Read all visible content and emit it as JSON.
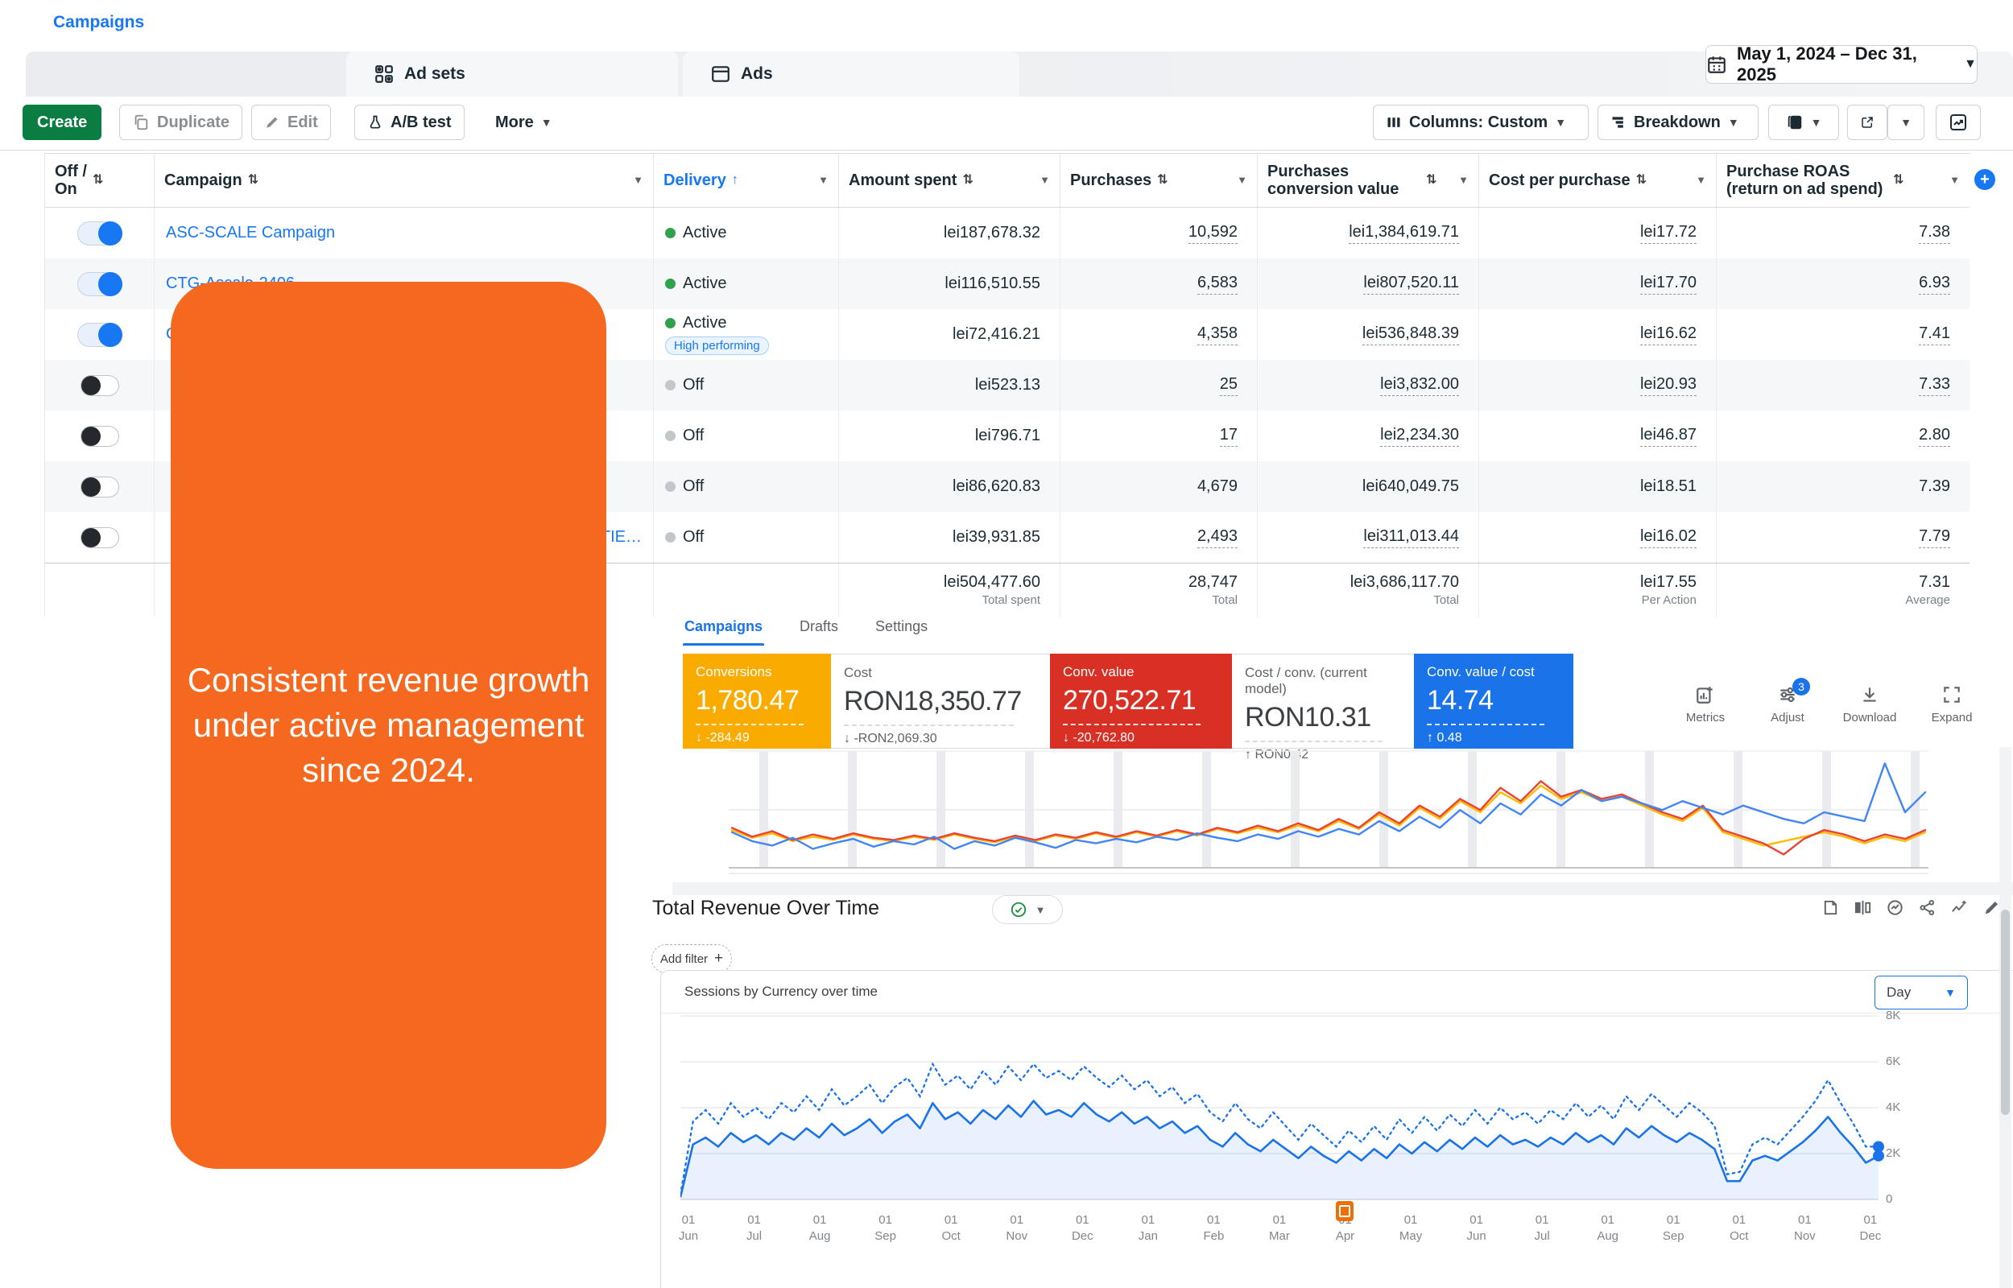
{
  "colors": {
    "meta_blue": "#1877F2",
    "google_blue": "#1A73E8",
    "green": "#31A24C",
    "amber": "#F9AB00",
    "red": "#D93025",
    "create_green": "#0B7C42",
    "overlay_orange": "#F4691F"
  },
  "tabs": {
    "campaigns": "Campaigns",
    "ad_sets": "Ad sets",
    "ads": "Ads"
  },
  "date_range": "May 1, 2024 – Dec 31, 2025",
  "toolbar": {
    "create": "Create",
    "duplicate": "Duplicate",
    "edit": "Edit",
    "ab_test": "A/B test",
    "more": "More",
    "columns": "Columns: Custom",
    "breakdown": "Breakdown"
  },
  "table": {
    "headers": {
      "off_on": "Off /\nOn",
      "campaign": "Campaign",
      "delivery": "Delivery",
      "amount_spent": "Amount spent",
      "purchases": "Purchases",
      "purchases_conversion_value": "Purchases conversion value",
      "cost_per_purchase": "Cost per purchase",
      "purchase_roas": "Purchase ROAS (return on ad spend)"
    },
    "rows": [
      {
        "on": true,
        "name": "ASC-SCALE Campaign",
        "delivery": "Active",
        "badge": "",
        "spent": "lei187,678.32",
        "purchases": "10,592",
        "conv_value": "lei1,384,619.71",
        "cpp": "lei17.72",
        "roas": "7.38",
        "u": true,
        "align": "left"
      },
      {
        "on": true,
        "name": "CTG-Ascale-2406",
        "delivery": "Active",
        "badge": "",
        "spent": "lei116,510.55",
        "purchases": "6,583",
        "conv_value": "lei807,520.11",
        "cpp": "lei17.70",
        "roas": "6.93",
        "u": true,
        "align": "left"
      },
      {
        "on": true,
        "name": "C",
        "delivery": "Active",
        "badge": "High performing",
        "spent": "lei72,416.21",
        "purchases": "4,358",
        "conv_value": "lei536,848.39",
        "cpp": "lei16.62",
        "roas": "7.41",
        "u": true,
        "align": "left"
      },
      {
        "on": false,
        "name": "",
        "delivery": "Off",
        "badge": "",
        "spent": "lei523.13",
        "purchases": "25",
        "conv_value": "lei3,832.00",
        "cpp": "lei20.93",
        "roas": "7.33",
        "u": true,
        "align": "left"
      },
      {
        "on": false,
        "name": "",
        "delivery": "Off",
        "badge": "",
        "spent": "lei796.71",
        "purchases": "17",
        "conv_value": "lei2,234.30",
        "cpp": "lei46.87",
        "roas": "2.80",
        "u": true,
        "align": "left"
      },
      {
        "on": false,
        "name": "",
        "delivery": "Off",
        "badge": "",
        "spent": "lei86,620.83",
        "purchases": "4,679",
        "conv_value": "lei640,049.75",
        "cpp": "lei18.51",
        "roas": "7.39",
        "u": false,
        "align": "left"
      },
      {
        "on": false,
        "name": "TIE…",
        "delivery": "Off",
        "badge": "",
        "spent": "lei39,931.85",
        "purchases": "2,493",
        "conv_value": "lei311,013.44",
        "cpp": "lei16.02",
        "roas": "7.79",
        "u": true,
        "align": "right"
      }
    ],
    "totals": {
      "spent": "lei504,477.60",
      "spent_label": "Total spent",
      "purchases": "28,747",
      "purchases_label": "Total",
      "conv_value": "lei3,686,117.70",
      "conv_value_label": "Total",
      "cpp": "lei17.55",
      "cpp_label": "Per Action",
      "roas": "7.31",
      "roas_label": "Average"
    }
  },
  "overlay": {
    "lines": [
      "Consistent revenue growth",
      "under active management",
      "since 2024."
    ]
  },
  "ads_panel": {
    "tabs": [
      "Campaigns",
      "Drafts",
      "Settings"
    ],
    "cards": [
      {
        "label": "Conversions",
        "value": "1,780.47",
        "delta": "↓ -284.49",
        "bg": "#F9AB00",
        "fg": "#FFFFFF"
      },
      {
        "label": "Cost",
        "value": "RON18,350.77",
        "delta": "↓ -RON2,069.30",
        "bg": "#FFFFFF",
        "fg": ""
      },
      {
        "label": "Conv. value",
        "value": "270,522.71",
        "delta": "↓ -20,762.80",
        "bg": "#D93025",
        "fg": "#FFFFFF"
      },
      {
        "label": "Cost / conv. (current model)",
        "value": "RON10.31",
        "delta": "↑ RON0.42",
        "bg": "#FFFFFF",
        "fg": ""
      },
      {
        "label": "Conv. value / cost",
        "value": "14.74",
        "delta": "↑ 0.48",
        "bg": "#1A73E8",
        "fg": "#FFFFFF"
      }
    ],
    "actions": [
      {
        "label": "Metrics",
        "badge": ""
      },
      {
        "label": "Adjust",
        "badge": "3"
      },
      {
        "label": "Download",
        "badge": ""
      },
      {
        "label": "Expand",
        "badge": ""
      }
    ]
  },
  "revenue_section": {
    "title": "Total Revenue Over Time",
    "add_filter": "Add filter",
    "chart_title": "Sessions by Currency over time",
    "interval": "Day"
  },
  "chart_data": [
    {
      "type": "line",
      "title": "",
      "xlabel": "",
      "ylabel": "",
      "units": "relative-percent",
      "ylim": [
        0,
        100
      ],
      "grid": "monthly-bands",
      "legend": "none",
      "series": [
        {
          "name": "blue",
          "color": "#4285F4",
          "values": [
            32,
            24,
            20,
            27,
            17,
            22,
            26,
            19,
            24,
            21,
            28,
            17,
            24,
            20,
            27,
            23,
            18,
            25,
            22,
            26,
            23,
            28,
            25,
            31,
            27,
            24,
            30,
            26,
            33,
            28,
            35,
            30,
            42,
            33,
            46,
            36,
            52,
            40,
            58,
            48,
            66,
            56,
            70,
            60,
            64,
            58,
            52,
            60,
            54,
            48,
            56,
            50,
            44,
            40,
            50,
            46,
            42,
            94,
            50,
            68
          ]
        },
        {
          "name": "red",
          "color": "#EA4335",
          "values": [
            36,
            28,
            33,
            25,
            30,
            26,
            31,
            27,
            25,
            29,
            26,
            31,
            27,
            24,
            29,
            25,
            30,
            27,
            32,
            28,
            33,
            29,
            34,
            30,
            36,
            32,
            38,
            33,
            40,
            34,
            44,
            36,
            50,
            40,
            56,
            46,
            62,
            52,
            72,
            60,
            78,
            64,
            70,
            62,
            66,
            58,
            50,
            44,
            56,
            34,
            28,
            22,
            12,
            26,
            34,
            30,
            24,
            30,
            26,
            34
          ]
        },
        {
          "name": "yellow",
          "color": "#FBBC04",
          "values": [
            34,
            27,
            31,
            24,
            28,
            25,
            30,
            26,
            24,
            28,
            25,
            30,
            26,
            23,
            28,
            24,
            29,
            26,
            31,
            27,
            32,
            28,
            33,
            29,
            35,
            31,
            36,
            32,
            38,
            33,
            42,
            35,
            48,
            38,
            54,
            44,
            60,
            50,
            68,
            58,
            74,
            62,
            68,
            60,
            64,
            56,
            48,
            42,
            54,
            32,
            26,
            20,
            24,
            28,
            32,
            28,
            22,
            28,
            24,
            32
          ]
        }
      ]
    },
    {
      "type": "area",
      "title": "Sessions by Currency over time",
      "interval": "Day",
      "ylim": [
        0,
        8000
      ],
      "yticks": [
        "8K",
        "6K",
        "4K",
        "2K",
        "0"
      ],
      "legend": "none",
      "x_labels": [
        "01 Jun",
        "01 Jul",
        "01 Aug",
        "01 Sep",
        "01 Oct",
        "01 Nov",
        "01 Dec",
        "01 Jan",
        "01 Feb",
        "01 Mar",
        "01 Apr",
        "01 May",
        "01 Jun",
        "01 Jul",
        "01 Aug",
        "01 Sep",
        "01 Oct",
        "01 Nov",
        "01 Dec"
      ],
      "series": [
        {
          "name": "sessions",
          "style": "solid",
          "color": "#1A73E8",
          "units": "K",
          "values": [
            0.1,
            2.4,
            2.7,
            2.3,
            2.9,
            2.5,
            2.8,
            2.4,
            2.9,
            2.6,
            3.1,
            2.7,
            3.3,
            2.8,
            3.1,
            3.5,
            2.9,
            3.4,
            3.7,
            3.1,
            4.2,
            3.5,
            3.8,
            3.3,
            3.9,
            3.5,
            4.1,
            3.6,
            4.3,
            3.7,
            3.9,
            3.6,
            4.2,
            3.7,
            3.4,
            3.8,
            3.3,
            3.6,
            3.1,
            3.4,
            2.9,
            3.2,
            2.6,
            2.3,
            2.9,
            2.4,
            2.1,
            2.6,
            2.2,
            1.8,
            2.3,
            1.9,
            1.6,
            2.1,
            1.7,
            2.2,
            1.8,
            2.4,
            2.0,
            2.5,
            2.1,
            2.6,
            2.2,
            2.7,
            2.3,
            2.8,
            2.4,
            2.6,
            2.3,
            2.7,
            2.4,
            2.9,
            2.5,
            2.8,
            2.4,
            3.1,
            2.7,
            3.2,
            2.8,
            2.5,
            2.9,
            2.6,
            2.2,
            0.8,
            0.8,
            1.7,
            1.9,
            1.7,
            2.1,
            2.5,
            3.0,
            3.6,
            2.9,
            2.3,
            1.6,
            1.9
          ]
        },
        {
          "name": "sessions-compare",
          "style": "dotted",
          "color": "#1A73E8",
          "units": "K",
          "values": [
            0.2,
            3.4,
            3.9,
            3.3,
            4.2,
            3.6,
            4.0,
            3.5,
            4.2,
            3.8,
            4.5,
            3.9,
            4.8,
            4.1,
            4.5,
            5.0,
            4.2,
            4.9,
            5.3,
            4.5,
            5.9,
            5.0,
            5.4,
            4.8,
            5.6,
            5.0,
            5.8,
            5.2,
            5.9,
            5.3,
            5.6,
            5.2,
            5.8,
            5.3,
            4.9,
            5.4,
            4.8,
            5.2,
            4.5,
            4.9,
            4.2,
            4.6,
            3.8,
            3.4,
            4.2,
            3.5,
            3.1,
            3.8,
            3.2,
            2.6,
            3.3,
            2.8,
            2.3,
            3.0,
            2.5,
            3.2,
            2.6,
            3.5,
            2.9,
            3.6,
            3.0,
            3.7,
            3.2,
            3.9,
            3.3,
            4.0,
            3.5,
            3.8,
            3.3,
            3.9,
            3.5,
            4.2,
            3.6,
            4.1,
            3.5,
            4.5,
            3.9,
            4.6,
            4.1,
            3.6,
            4.2,
            3.8,
            3.2,
            1.1,
            1.2,
            2.4,
            2.7,
            2.4,
            3.0,
            3.6,
            4.3,
            5.2,
            4.2,
            3.3,
            2.3,
            2.3
          ]
        }
      ]
    }
  ]
}
